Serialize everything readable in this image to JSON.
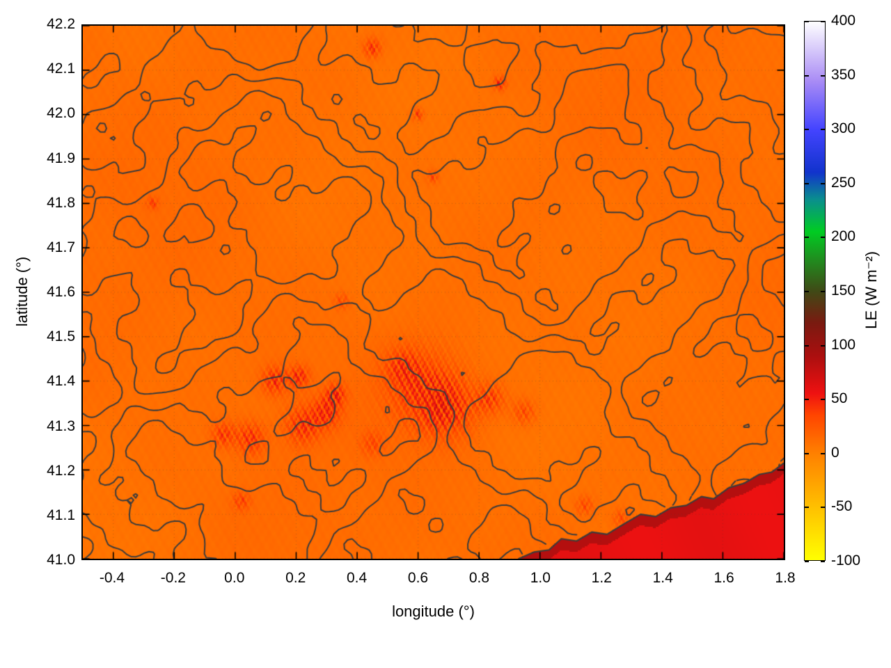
{
  "chart_data": {
    "type": "heatmap",
    "title": "",
    "xlabel": "longitude (°)",
    "ylabel": "latitude (°)",
    "xlim": [
      -0.5,
      1.8
    ],
    "ylim": [
      41.0,
      42.2
    ],
    "grid": "dotted",
    "xticks": [
      {
        "value": -0.4,
        "label": "-0.4"
      },
      {
        "value": -0.2,
        "label": "-0.2"
      },
      {
        "value": 0.0,
        "label": "0.0"
      },
      {
        "value": 0.2,
        "label": "0.2"
      },
      {
        "value": 0.4,
        "label": "0.4"
      },
      {
        "value": 0.6,
        "label": "0.6"
      },
      {
        "value": 0.8,
        "label": "0.8"
      },
      {
        "value": 1.0,
        "label": "1.0"
      },
      {
        "value": 1.2,
        "label": "1.2"
      },
      {
        "value": 1.4,
        "label": "1.4"
      },
      {
        "value": 1.6,
        "label": "1.6"
      },
      {
        "value": 1.8,
        "label": "1.8"
      }
    ],
    "yticks": [
      {
        "value": 41.0,
        "label": "41.0"
      },
      {
        "value": 41.1,
        "label": "41.1"
      },
      {
        "value": 41.2,
        "label": "41.2"
      },
      {
        "value": 41.3,
        "label": "41.3"
      },
      {
        "value": 41.4,
        "label": "41.4"
      },
      {
        "value": 41.5,
        "label": "41.5"
      },
      {
        "value": 41.6,
        "label": "41.6"
      },
      {
        "value": 41.7,
        "label": "41.7"
      },
      {
        "value": 41.8,
        "label": "41.8"
      },
      {
        "value": 41.9,
        "label": "41.9"
      },
      {
        "value": 42.0,
        "label": "42.0"
      },
      {
        "value": 42.1,
        "label": "42.1"
      },
      {
        "value": 42.2,
        "label": "42.2"
      }
    ],
    "colorbar": {
      "label": "LE (W m⁻²)",
      "range": [
        -100,
        400
      ],
      "ticks": [
        {
          "value": -100,
          "label": "-100"
        },
        {
          "value": -50,
          "label": "-50"
        },
        {
          "value": 0,
          "label": "0"
        },
        {
          "value": 50,
          "label": "50"
        },
        {
          "value": 100,
          "label": "100"
        },
        {
          "value": 150,
          "label": "150"
        },
        {
          "value": 200,
          "label": "200"
        },
        {
          "value": 250,
          "label": "250"
        },
        {
          "value": 300,
          "label": "300"
        },
        {
          "value": 350,
          "label": "350"
        },
        {
          "value": 400,
          "label": "400"
        }
      ],
      "stops": [
        {
          "v": -100,
          "color": "#ffff00"
        },
        {
          "v": -50,
          "color": "#ffbf00"
        },
        {
          "v": 0,
          "color": "#ff7f00"
        },
        {
          "v": 35,
          "color": "#ff4400"
        },
        {
          "v": 55,
          "color": "#ee1111"
        },
        {
          "v": 90,
          "color": "#aa0f0f"
        },
        {
          "v": 120,
          "color": "#7a1a10"
        },
        {
          "v": 150,
          "color": "#3f4a16"
        },
        {
          "v": 180,
          "color": "#1f8f1f"
        },
        {
          "v": 205,
          "color": "#00cc22"
        },
        {
          "v": 235,
          "color": "#0a8e8e"
        },
        {
          "v": 260,
          "color": "#1133cc"
        },
        {
          "v": 300,
          "color": "#4444ff"
        },
        {
          "v": 345,
          "color": "#a98cf5"
        },
        {
          "v": 400,
          "color": "#ffffff"
        }
      ]
    },
    "field": {
      "units": "W m⁻²",
      "land_base_value": 10,
      "sea_value": 58,
      "coast_band_value": 85,
      "hotspots": [
        [
          0.62,
          41.38,
          0.13,
          38
        ],
        [
          0.7,
          41.34,
          0.09,
          42
        ],
        [
          0.55,
          41.43,
          0.06,
          30
        ],
        [
          0.3,
          41.33,
          0.05,
          45
        ],
        [
          0.22,
          41.3,
          0.06,
          45
        ],
        [
          0.05,
          41.27,
          0.05,
          46
        ],
        [
          -0.04,
          41.28,
          0.04,
          40
        ],
        [
          0.13,
          41.4,
          0.045,
          48
        ],
        [
          0.21,
          41.41,
          0.035,
          48
        ],
        [
          0.33,
          41.37,
          0.035,
          46
        ],
        [
          0.45,
          41.26,
          0.04,
          28
        ],
        [
          0.84,
          41.36,
          0.05,
          38
        ],
        [
          0.95,
          41.33,
          0.04,
          32
        ],
        [
          0.45,
          42.15,
          0.03,
          46
        ],
        [
          0.87,
          42.07,
          0.022,
          50
        ],
        [
          0.6,
          42.0,
          0.02,
          40
        ],
        [
          -0.27,
          41.8,
          0.02,
          34
        ],
        [
          1.15,
          41.12,
          0.03,
          32
        ],
        [
          0.02,
          41.13,
          0.03,
          34
        ],
        [
          1.27,
          41.09,
          0.03,
          30
        ],
        [
          0.65,
          41.86,
          0.02,
          36
        ],
        [
          0.35,
          41.58,
          0.025,
          30
        ]
      ],
      "coastline": [
        [
          0.93,
          41.0
        ],
        [
          0.98,
          41.015
        ],
        [
          1.03,
          41.02
        ],
        [
          1.07,
          41.045
        ],
        [
          1.12,
          41.04
        ],
        [
          1.17,
          41.06
        ],
        [
          1.22,
          41.055
        ],
        [
          1.28,
          41.08
        ],
        [
          1.33,
          41.1
        ],
        [
          1.38,
          41.095
        ],
        [
          1.43,
          41.115
        ],
        [
          1.48,
          41.12
        ],
        [
          1.53,
          41.14
        ],
        [
          1.57,
          41.135
        ],
        [
          1.62,
          41.16
        ],
        [
          1.67,
          41.17
        ],
        [
          1.72,
          41.19
        ],
        [
          1.76,
          41.195
        ],
        [
          1.8,
          41.215
        ]
      ]
    },
    "contours": {
      "color": "#3c3c3c",
      "levels": [
        -1.3,
        -0.45,
        0.45,
        1.3
      ]
    }
  }
}
